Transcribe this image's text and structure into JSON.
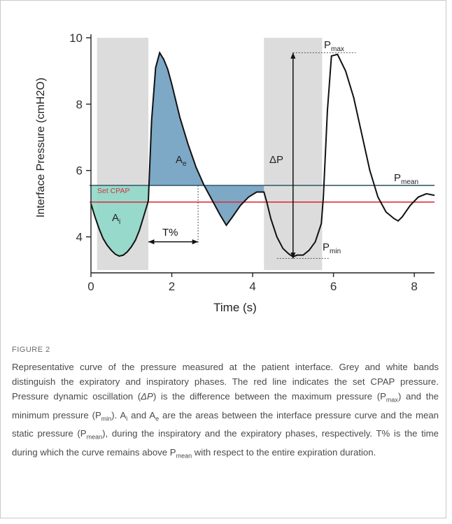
{
  "figure_label": "FIGURE 2",
  "caption": {
    "s1": "Representative curve of the pressure measured at the patient interface. Grey and white bands distinguish the expiratory and inspiratory phases. The red line indicates the set CPAP pressure. Pressure dynamic oscillation (",
    "s2": "ΔP",
    "s3": ") is the difference between the maximum pressure (P",
    "s4": "max",
    "s5": ") and the minimum pressure (P",
    "s6": "min",
    "s7": "). A",
    "s8": "i",
    "s9": " and A",
    "s10": "e",
    "s11": " are the areas between the interface pressure curve and the mean static pressure (P",
    "s12": "mean",
    "s13": "), during the inspiratory and the expiratory phases, respectively. T% is the time during which the curve remains above P",
    "s14": "mean",
    "s15": " with respect to the entire expiration duration."
  },
  "colors": {
    "grey_band": "#dcdcdc",
    "set_cpap_line": "#d9333f",
    "mean_line": "#3a5f73",
    "area_ai": "#8fd8c8",
    "area_ae": "#6f9fc0",
    "curve": "#111111"
  },
  "chart_data": {
    "type": "line",
    "xlabel": "Time (s)",
    "ylabel": "Interface Pressure (cmH2O)",
    "xlim": [
      0,
      8.5
    ],
    "ylim": [
      3,
      10
    ],
    "x_ticks": [
      "0",
      "2",
      "4",
      "6",
      "8"
    ],
    "x_tick_values": [
      0,
      2,
      4,
      6,
      8
    ],
    "y_ticks": [
      "4",
      "6",
      "8",
      "10"
    ],
    "y_tick_values": [
      4,
      6,
      8,
      10
    ],
    "set_cpap": 5.05,
    "p_mean": 5.55,
    "p_max": 9.55,
    "p_min": 3.35,
    "inspiratory_bands": [
      [
        0.15,
        1.42
      ],
      [
        4.28,
        5.72
      ]
    ],
    "t_percent_interval": [
      1.42,
      2.65
    ],
    "series": [
      {
        "x": [
          0,
          0.1,
          0.2,
          0.3,
          0.4,
          0.5,
          0.6,
          0.7,
          0.8,
          0.9,
          1.0,
          1.1,
          1.2,
          1.3,
          1.4,
          1.42,
          1.5,
          1.6,
          1.7,
          1.8,
          1.9,
          2.0,
          2.2,
          2.4,
          2.6,
          2.8,
          3.0,
          3.2,
          3.35,
          3.5,
          3.7,
          3.9,
          4.1,
          4.28,
          4.35,
          4.45,
          4.6,
          4.75,
          4.9,
          5.0,
          5.1,
          5.25,
          5.4,
          5.55,
          5.7,
          5.75,
          5.85,
          5.95,
          6.1,
          6.3,
          6.5,
          6.7,
          6.9,
          7.1,
          7.3,
          7.5,
          7.6,
          7.7,
          7.9,
          8.1,
          8.3,
          8.5
        ],
        "y": [
          5.0,
          4.6,
          4.25,
          3.95,
          3.75,
          3.6,
          3.48,
          3.42,
          3.45,
          3.55,
          3.7,
          3.9,
          4.2,
          4.6,
          5.0,
          5.1,
          7.5,
          9.1,
          9.55,
          9.35,
          9.05,
          8.6,
          7.6,
          6.8,
          6.1,
          5.55,
          5.1,
          4.65,
          4.35,
          4.6,
          4.95,
          5.2,
          5.35,
          5.35,
          5.05,
          4.55,
          4.0,
          3.65,
          3.48,
          3.4,
          3.45,
          3.45,
          3.6,
          3.85,
          4.4,
          5.2,
          7.8,
          9.45,
          9.5,
          9.0,
          8.2,
          7.1,
          6.0,
          5.2,
          4.75,
          4.55,
          4.48,
          4.6,
          4.95,
          5.2,
          5.3,
          5.25
        ]
      }
    ],
    "annotations": {
      "delta_p": "ΔP",
      "t_percent": "T%",
      "set_cpap_label": "Set CPAP",
      "ai_base": "A",
      "ai_sub": "i",
      "ae_base": "A",
      "ae_sub": "e",
      "pmax_base": "P",
      "pmax_sub": "max",
      "pmin_base": "P",
      "pmin_sub": "min",
      "pmean_base": "P",
      "pmean_sub": "mean"
    }
  }
}
